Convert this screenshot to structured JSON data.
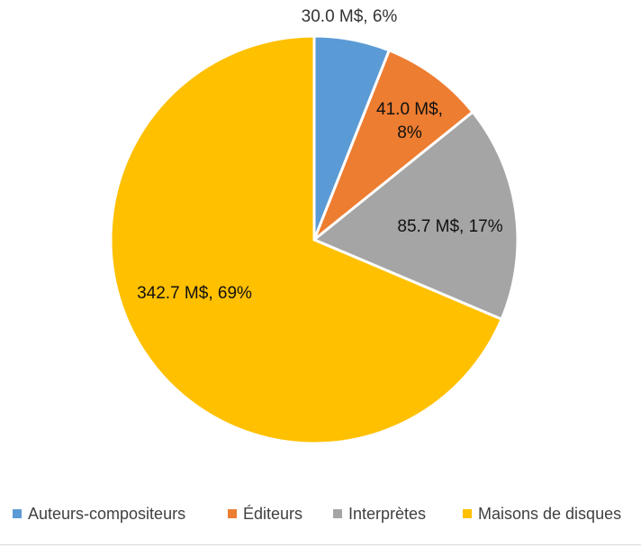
{
  "chart_data": {
    "type": "pie",
    "start_angle_deg": 0,
    "direction": "clockwise",
    "slices": [
      {
        "label": "Auteurs-compositeurs",
        "value": 30.0,
        "percent": 6,
        "data_label": "30.0 M$, 6%",
        "color": "#5B9BD5"
      },
      {
        "label": "Éditeurs",
        "value": 41.0,
        "percent": 8,
        "data_label": "41.0 M$, 8%",
        "color": "#ED7D31"
      },
      {
        "label": "Interprètes",
        "value": 85.7,
        "percent": 17,
        "data_label": "85.7 M$, 17%",
        "color": "#A5A5A5"
      },
      {
        "label": "Maisons de disques",
        "value": 342.7,
        "percent": 69,
        "data_label": "342.7 M$, 69%",
        "color": "#FFC000"
      }
    ],
    "legend_position": "bottom"
  }
}
